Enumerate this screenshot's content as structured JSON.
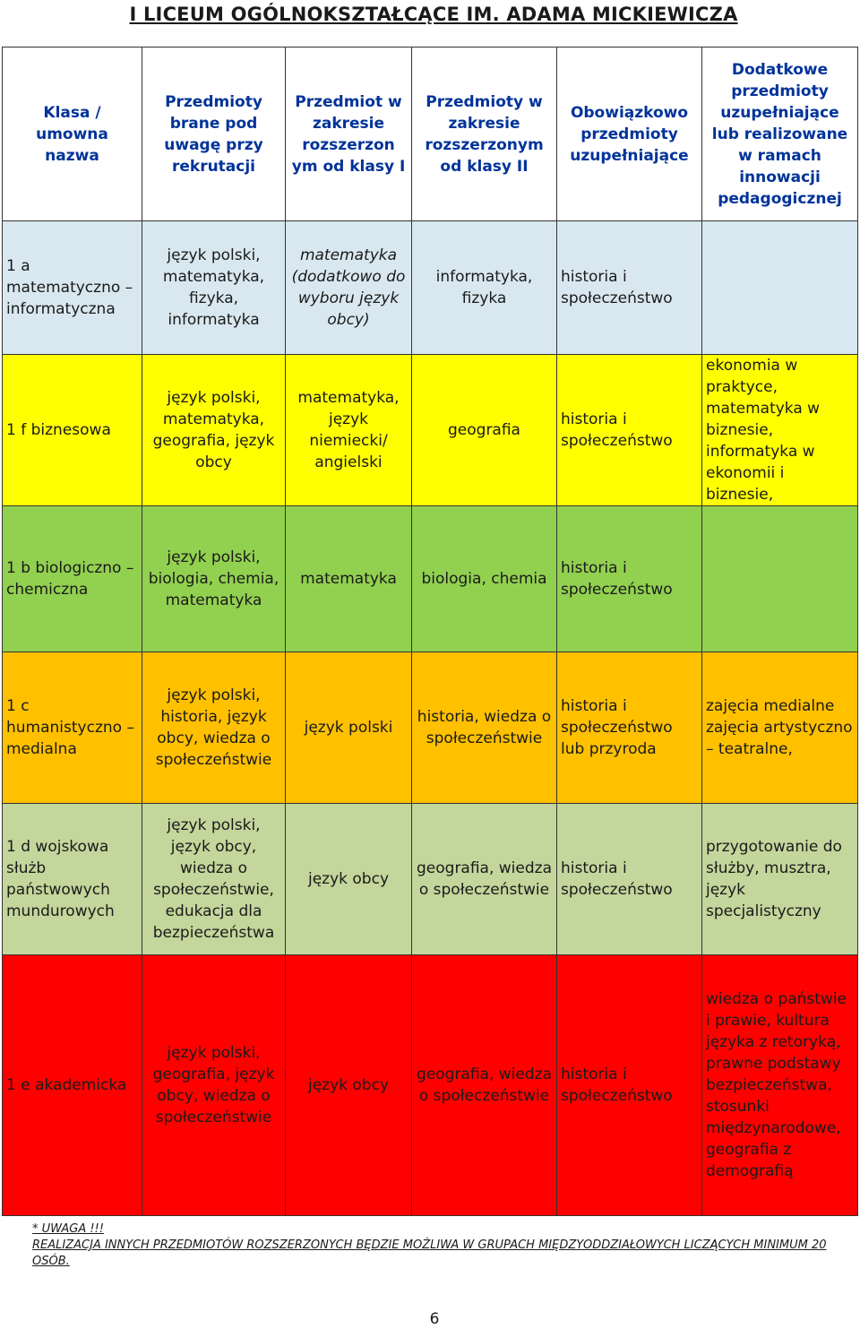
{
  "title": "I LICEUM OGÓLNOKSZTAŁCĄCE IM. ADAMA MICKIEWICZA",
  "headers": [
    "Klasa / umowna nazwa",
    "Przedmioty brane pod uwagę przy rekrutacji",
    "Przedmiot w zakresie rozszerzon ym od klasy I",
    "Przedmioty w zakresie rozszerzonym od klasy II",
    "Obowiązkowo przedmioty uzupełniające",
    "Dodatkowe przedmioty uzupełniające lub realizowane w ramach innowacji pedagogicznej"
  ],
  "rows": [
    {
      "class": "1 a matematyczno – informatyczna",
      "recruitment": "język polski, matematyka, fizyka, informatyka",
      "extended_1": "matematyka (dodatkowo do wyboru język obcy)",
      "extended_2": "informatyka, fizyka",
      "mandatory": "historia i społeczeństwo",
      "additional": ""
    },
    {
      "class": "1 f biznesowa",
      "recruitment": "język polski, matematyka, geografia, język obcy",
      "extended_1": "matematyka, język niemiecki/ angielski",
      "extended_2": "geografia",
      "mandatory": "historia i społeczeństwo",
      "additional": "ekonomia w praktyce, matematyka w biznesie, informatyka w ekonomii i biznesie,"
    },
    {
      "class": "1 b biologiczno – chemiczna",
      "recruitment": "język polski, biologia, chemia, matematyka",
      "extended_1": "matematyka",
      "extended_2": "biologia, chemia",
      "mandatory": "historia i społeczeństwo",
      "additional": ""
    },
    {
      "class": "1 c humanistyczno – medialna",
      "recruitment": "język polski, historia, język obcy, wiedza o społeczeństwie",
      "extended_1": "język polski",
      "extended_2": "historia, wiedza o społeczeństwie",
      "mandatory": "historia i społeczeństwo lub przyroda",
      "additional": "zajęcia medialne zajęcia artystyczno – teatralne,"
    },
    {
      "class": "1 d wojskowa służb państwowych mundurowych",
      "recruitment": "język polski, język obcy, wiedza o społeczeństwie, edukacja dla bezpieczeństwa",
      "extended_1": "język obcy",
      "extended_2": "geografia, wiedza o społeczeństwie",
      "mandatory": "historia i społeczeństwo",
      "additional": "przygotowanie do służby, musztra, język specjalistyczny"
    },
    {
      "class": "1 e akademicka",
      "recruitment": "język polski, geografia, język obcy, wiedza o społeczeństwie",
      "extended_1": "język obcy",
      "extended_2": "geografia, wiedza o społeczeństwie",
      "mandatory": "historia i społeczeństwo",
      "additional": "wiedza o państwie i prawie, kultura języka z retoryką, prawne podstawy bezpieczeństwa, stosunki międzynarodowe, geografia z demografią"
    }
  ],
  "note": {
    "label": "* UWAGA !!!",
    "text": "REALIZACJA INNYCH PRZEDMIOTÓW ROZSZERZONYCH BĘDZIE MOŻLIWA W GRUPACH MIĘDZYODDZIAŁOWYCH LICZĄCYCH MINIMUM 20 OSÓB."
  },
  "page_number": "6",
  "colors": {
    "header_text": "#003399",
    "row_1a": "#d9e8f0",
    "row_1f": "#ffff00",
    "row_1b": "#92d050",
    "row_1c": "#ffc000",
    "row_1d": "#c3d69b",
    "row_1e": "#ff0000"
  }
}
